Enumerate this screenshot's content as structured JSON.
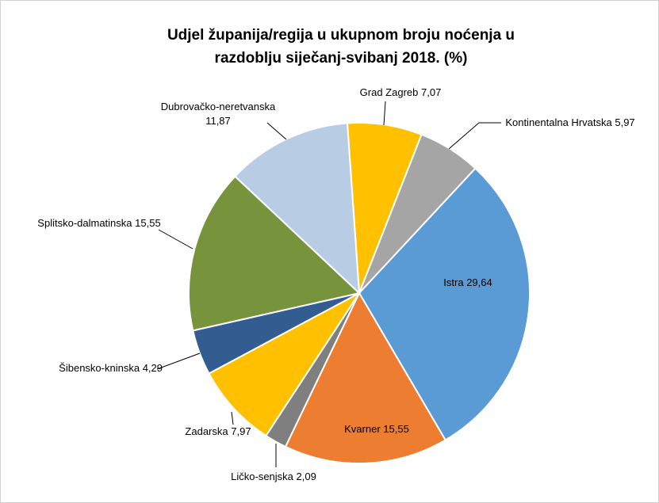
{
  "chart_data": {
    "type": "pie",
    "title": "Udjel županija/regija u ukupnom broju noćenja u razdoblju siječanj-svibanj 2018. (%)",
    "categories": [
      "Grad Zagreb",
      "Kontinentalna Hrvatska",
      "Istra",
      "Kvarner",
      "Ličko-senjska",
      "Zadarska",
      "Šibensko-kninska",
      "Splitsko-dalmatinska",
      "Dubrovačko-neretvanska"
    ],
    "values": [
      7.07,
      5.97,
      29.64,
      15.55,
      2.09,
      7.97,
      4.29,
      15.55,
      11.87
    ],
    "value_labels": [
      "7,07",
      "5,97",
      "29,64",
      "15,55",
      "2,09",
      "7,97",
      "4,29",
      "15,55",
      "11,87"
    ],
    "colors": [
      "#ffc000",
      "#a5a5a5",
      "#5b9bd5",
      "#ed7d31",
      "#7f7f7f",
      "#ffc000",
      "#335d91",
      "#77933c",
      "#b8cce4"
    ]
  }
}
